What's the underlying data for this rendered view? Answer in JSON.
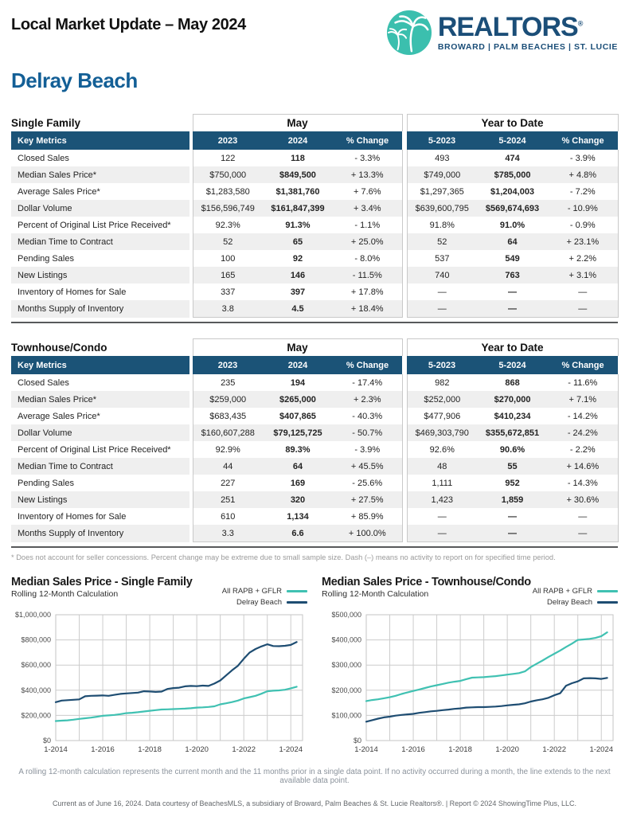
{
  "page": {
    "title": "Local Market Update – May 2024",
    "city": "Delray Beach"
  },
  "logo": {
    "brand": "REALTORS",
    "registered": "®",
    "tagline": "BROWARD | PALM BEACHES | ST. LUCIE",
    "circle_color": "#3BBFAE",
    "brand_color": "#1B4E78"
  },
  "tables": [
    {
      "section_title": "Single Family",
      "group_headers": [
        "May",
        "Year to Date"
      ],
      "columns": [
        "Key Metrics",
        "2023",
        "2024",
        "% Change",
        "5-2023",
        "5-2024",
        "% Change"
      ],
      "rows": [
        [
          "Closed Sales",
          "122",
          "118",
          "- 3.3%",
          "493",
          "474",
          "- 3.9%"
        ],
        [
          "Median Sales Price*",
          "$750,000",
          "$849,500",
          "+ 13.3%",
          "$749,000",
          "$785,000",
          "+ 4.8%"
        ],
        [
          "Average Sales Price*",
          "$1,283,580",
          "$1,381,760",
          "+ 7.6%",
          "$1,297,365",
          "$1,204,003",
          "- 7.2%"
        ],
        [
          "Dollar Volume",
          "$156,596,749",
          "$161,847,399",
          "+ 3.4%",
          "$639,600,795",
          "$569,674,693",
          "- 10.9%"
        ],
        [
          "Percent of Original List Price Received*",
          "92.3%",
          "91.3%",
          "- 1.1%",
          "91.8%",
          "91.0%",
          "- 0.9%"
        ],
        [
          "Median Time to Contract",
          "52",
          "65",
          "+ 25.0%",
          "52",
          "64",
          "+ 23.1%"
        ],
        [
          "Pending Sales",
          "100",
          "92",
          "- 8.0%",
          "537",
          "549",
          "+ 2.2%"
        ],
        [
          "New Listings",
          "165",
          "146",
          "- 11.5%",
          "740",
          "763",
          "+ 3.1%"
        ],
        [
          "Inventory of Homes for Sale",
          "337",
          "397",
          "+ 17.8%",
          "—",
          "—",
          "—"
        ],
        [
          "Months Supply of Inventory",
          "3.8",
          "4.5",
          "+ 18.4%",
          "—",
          "—",
          "—"
        ]
      ]
    },
    {
      "section_title": "Townhouse/Condo",
      "group_headers": [
        "May",
        "Year to Date"
      ],
      "columns": [
        "Key Metrics",
        "2023",
        "2024",
        "% Change",
        "5-2023",
        "5-2024",
        "% Change"
      ],
      "rows": [
        [
          "Closed Sales",
          "235",
          "194",
          "- 17.4%",
          "982",
          "868",
          "- 11.6%"
        ],
        [
          "Median Sales Price*",
          "$259,000",
          "$265,000",
          "+ 2.3%",
          "$252,000",
          "$270,000",
          "+ 7.1%"
        ],
        [
          "Average Sales Price*",
          "$683,435",
          "$407,865",
          "- 40.3%",
          "$477,906",
          "$410,234",
          "- 14.2%"
        ],
        [
          "Dollar Volume",
          "$160,607,288",
          "$79,125,725",
          "- 50.7%",
          "$469,303,790",
          "$355,672,851",
          "- 24.2%"
        ],
        [
          "Percent of Original List Price Received*",
          "92.9%",
          "89.3%",
          "- 3.9%",
          "92.6%",
          "90.6%",
          "- 2.2%"
        ],
        [
          "Median Time to Contract",
          "44",
          "64",
          "+ 45.5%",
          "48",
          "55",
          "+ 14.6%"
        ],
        [
          "Pending Sales",
          "227",
          "169",
          "- 25.6%",
          "1,111",
          "952",
          "- 14.3%"
        ],
        [
          "New Listings",
          "251",
          "320",
          "+ 27.5%",
          "1,423",
          "1,859",
          "+ 30.6%"
        ],
        [
          "Inventory of Homes for Sale",
          "610",
          "1,134",
          "+ 85.9%",
          "—",
          "—",
          "—"
        ],
        [
          "Months Supply of Inventory",
          "3.3",
          "6.6",
          "+ 100.0%",
          "—",
          "—",
          "—"
        ]
      ]
    }
  ],
  "table_footnote": "* Does not account for seller concessions. Percent change may be extreme due to small sample size. Dash (–) means no activity to report on for specified time period.",
  "chart_data": [
    {
      "type": "line",
      "title": "Median Sales Price - Single Family",
      "subtitle": "Rolling 12-Month Calculation",
      "x_start": 2014,
      "x_step": 0.25,
      "xlim": [
        2014,
        2024.5
      ],
      "ylim": [
        0,
        1000000
      ],
      "y_ticks": [
        0,
        200000,
        400000,
        600000,
        800000,
        1000000
      ],
      "y_tick_labels": [
        "$0",
        "$200,000",
        "$400,000",
        "$600,000",
        "$800,000",
        "$1,000,000"
      ],
      "x_ticks": [
        2014,
        2016,
        2018,
        2020,
        2022,
        2024
      ],
      "x_tick_labels": [
        "1-2014",
        "1-2016",
        "1-2018",
        "1-2020",
        "1-2022",
        "1-2024"
      ],
      "grid": true,
      "grid_x_years": [
        2014,
        2015,
        2016,
        2017,
        2018,
        2019,
        2020,
        2021,
        2022,
        2023,
        2024
      ],
      "legend_position": "top-right",
      "series": [
        {
          "name": "All RAPB + GFLR",
          "color": "#40C1B2",
          "values": [
            155000,
            158000,
            161000,
            166000,
            172000,
            177000,
            182000,
            189000,
            197000,
            200000,
            204000,
            210000,
            218000,
            221000,
            225000,
            231000,
            237000,
            242000,
            247000,
            248000,
            250000,
            252000,
            254000,
            257000,
            262000,
            264000,
            267000,
            272000,
            288000,
            296000,
            306000,
            318000,
            335000,
            345000,
            356000,
            372000,
            392000,
            396000,
            399000,
            404000,
            415000,
            428000
          ]
        },
        {
          "name": "Delray Beach",
          "color": "#1E4D72",
          "values": [
            305000,
            318000,
            321000,
            324000,
            327000,
            352000,
            356000,
            357000,
            359000,
            356000,
            363000,
            371000,
            375000,
            378000,
            381000,
            392000,
            390000,
            387000,
            389000,
            410000,
            417000,
            420000,
            431000,
            434000,
            432000,
            437000,
            434000,
            453000,
            478000,
            518000,
            558000,
            594000,
            650000,
            700000,
            728000,
            748000,
            765000,
            751000,
            750000,
            753000,
            760000,
            783000
          ]
        }
      ]
    },
    {
      "type": "line",
      "title": "Median Sales Price - Townhouse/Condo",
      "subtitle": "Rolling 12-Month Calculation",
      "x_start": 2014,
      "x_step": 0.25,
      "xlim": [
        2014,
        2024.5
      ],
      "ylim": [
        0,
        500000
      ],
      "y_ticks": [
        0,
        100000,
        200000,
        300000,
        400000,
        500000
      ],
      "y_tick_labels": [
        "$0",
        "$100,000",
        "$200,000",
        "$300,000",
        "$400,000",
        "$500,000"
      ],
      "x_ticks": [
        2014,
        2016,
        2018,
        2020,
        2022,
        2024
      ],
      "x_tick_labels": [
        "1-2014",
        "1-2016",
        "1-2018",
        "1-2020",
        "1-2022",
        "1-2024"
      ],
      "grid": true,
      "grid_x_years": [
        2014,
        2015,
        2016,
        2017,
        2018,
        2019,
        2020,
        2021,
        2022,
        2023,
        2024
      ],
      "legend_position": "top-right",
      "series": [
        {
          "name": "All RAPB + GFLR",
          "color": "#40C1B2",
          "values": [
            157000,
            161000,
            164000,
            168000,
            172000,
            178000,
            185000,
            191000,
            197000,
            203000,
            209000,
            215000,
            220000,
            225000,
            230000,
            234000,
            237000,
            244000,
            250000,
            251000,
            252000,
            254000,
            256000,
            259000,
            262000,
            265000,
            268000,
            275000,
            292000,
            305000,
            318000,
            332000,
            345000,
            358000,
            372000,
            385000,
            400000,
            402000,
            404000,
            408000,
            415000,
            430000
          ]
        },
        {
          "name": "Delray Beach",
          "color": "#1E4D72",
          "values": [
            75000,
            81000,
            87000,
            92000,
            95000,
            99000,
            102000,
            104000,
            106000,
            110000,
            113000,
            116000,
            118000,
            121000,
            123000,
            126000,
            128000,
            131000,
            132000,
            133000,
            133000,
            134000,
            135000,
            137000,
            140000,
            142000,
            144000,
            148000,
            155000,
            160000,
            164000,
            170000,
            180000,
            188000,
            218000,
            228000,
            235000,
            247000,
            248000,
            247000,
            245000,
            249000
          ]
        }
      ]
    }
  ],
  "charts_footnote": "A rolling 12-month calculation represents the current month and the 11 months prior in a single data point. If no activity occurred during a month, the line extends to the next available data point.",
  "credit": "Current as of June 16, 2024. Data courtesy of BeachesMLS, a subsidiary of Broward, Palm Beaches & St. Lucie Realtors®. | Report © 2024 ShowingTime Plus, LLC.",
  "colors": {
    "header_navy": "#1B5377",
    "stripe_gray": "#EFEFEF",
    "border_gray": "#C9C9C9",
    "dark_rule": "#58595B",
    "teal_line": "#40C1B2",
    "navy_line": "#1E4D72",
    "city_blue": "#135F96"
  }
}
